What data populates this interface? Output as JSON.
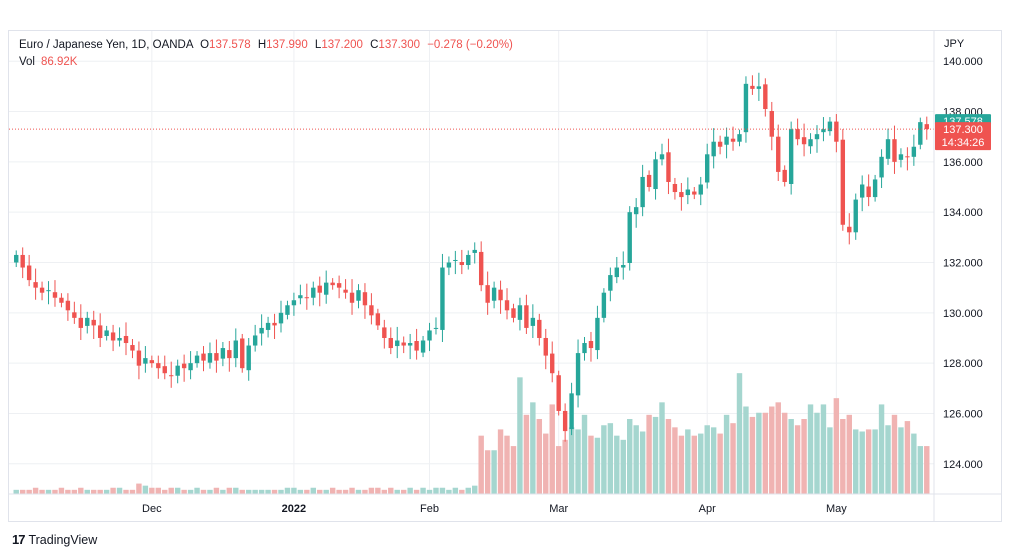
{
  "legend": {
    "symbol": "Euro / Japanese Yen, 1D, OANDA",
    "open_label": "O",
    "open": "137.578",
    "high_label": "H",
    "high": "137.990",
    "low_label": "L",
    "low": "137.200",
    "close_label": "C",
    "close": "137.300",
    "change": "−0.278 (−0.20%)",
    "vol_label": "Vol",
    "vol": "86.92K"
  },
  "footer": {
    "brand": "TradingView",
    "logo": "17"
  },
  "colors": {
    "up": "#26a69a",
    "down": "#ef5350",
    "up_vol": "#a5d6cf",
    "down_vol": "#f0b3b2",
    "grid": "#eef0f3",
    "axis": "#e0e3eb"
  },
  "chart_data": {
    "type": "candlestick",
    "currency_label": "JPY",
    "ylim": [
      122.8,
      141.2
    ],
    "y_ticks": [
      "124.000",
      "126.000",
      "128.000",
      "130.000",
      "132.000",
      "134.000",
      "136.000",
      "138.000",
      "140.000"
    ],
    "x_labels": [
      {
        "label": "Dec",
        "index": 21,
        "bold": false
      },
      {
        "label": "2022",
        "index": 43,
        "bold": true
      },
      {
        "label": "Feb",
        "index": 64,
        "bold": false
      },
      {
        "label": "Mar",
        "index": 84,
        "bold": false
      },
      {
        "label": "Apr",
        "index": 107,
        "bold": false
      },
      {
        "label": "May",
        "index": 127,
        "bold": false
      }
    ],
    "price_badges": [
      {
        "name": "open-price-badge",
        "value": 137.578,
        "text": "137.578",
        "color": "#26a69a"
      },
      {
        "name": "close-price-badge",
        "value": 137.3,
        "text": "137.300",
        "sub": "14:34:26",
        "color": "#ef5350"
      }
    ],
    "last_price": 137.3,
    "closes": [
      132.3,
      131.8,
      131.3,
      131.0,
      130.8,
      130.9,
      130.6,
      130.4,
      130.1,
      129.8,
      129.4,
      129.8,
      129.5,
      129.0,
      129.3,
      128.9,
      129.0,
      128.8,
      128.5,
      127.9,
      128.2,
      128.0,
      127.8,
      127.6,
      127.5,
      127.9,
      127.8,
      128.0,
      128.3,
      128.1,
      128.4,
      128.1,
      128.6,
      128.2,
      128.9,
      127.8,
      128.7,
      129.1,
      129.4,
      129.6,
      129.5,
      130.0,
      130.3,
      130.5,
      130.7,
      130.6,
      131.0,
      130.8,
      131.2,
      131.1,
      131.0,
      130.8,
      130.4,
      130.9,
      130.3,
      129.9,
      129.5,
      129.0,
      128.6,
      128.9,
      128.7,
      128.8,
      128.5,
      128.9,
      129.3,
      129.4,
      131.8,
      132.0,
      132.1,
      131.9,
      132.3,
      132.5,
      131.1,
      130.4,
      131.0,
      130.5,
      130.1,
      129.8,
      130.3,
      129.4,
      129.8,
      129.0,
      128.3,
      127.6,
      126.1,
      125.3,
      126.8,
      128.4,
      128.8,
      128.6,
      129.8,
      130.8,
      131.5,
      131.8,
      131.9,
      134.0,
      134.2,
      135.4,
      135.0,
      136.1,
      136.3,
      135.2,
      134.8,
      134.6,
      134.9,
      134.7,
      135.1,
      136.3,
      136.8,
      136.6,
      137.0,
      136.8,
      137.1,
      139.1,
      138.9,
      139.0,
      138.1,
      137.0,
      135.6,
      135.2,
      137.3,
      136.9,
      136.7,
      136.9,
      137.1,
      137.3,
      137.6,
      136.8,
      133.5,
      133.2,
      134.5,
      135.1,
      134.6,
      135.3,
      136.2,
      136.9,
      136.0,
      136.3,
      136.2,
      136.6,
      137.578,
      137.3
    ],
    "volume": [
      2,
      2,
      2,
      3,
      2,
      2,
      2,
      3,
      2,
      2,
      3,
      2,
      2,
      2,
      2,
      3,
      3,
      2,
      2,
      5,
      4,
      3,
      3,
      2,
      3,
      3,
      2,
      2,
      3,
      2,
      2,
      3,
      2,
      3,
      3,
      2,
      2,
      2,
      2,
      2,
      2,
      2,
      3,
      3,
      2,
      2,
      3,
      2,
      2,
      3,
      2,
      2,
      3,
      2,
      2,
      3,
      3,
      2,
      3,
      2,
      2,
      3,
      2,
      3,
      2,
      3,
      3,
      2,
      3,
      2,
      3,
      4,
      28,
      21,
      21,
      31,
      28,
      23,
      56,
      38,
      44,
      36,
      29,
      43,
      23,
      26,
      32,
      31,
      38,
      28,
      27,
      33,
      34,
      28,
      26,
      36,
      33,
      30,
      38,
      37,
      44,
      36,
      32,
      28,
      31,
      28,
      29,
      33,
      32,
      29,
      38,
      34,
      58,
      42,
      37,
      39,
      39,
      42,
      44,
      39,
      36,
      33,
      36,
      43,
      39,
      43,
      32,
      46,
      36,
      38,
      31,
      30,
      31,
      31,
      43,
      33,
      38,
      32,
      35,
      29,
      23,
      23
    ]
  }
}
